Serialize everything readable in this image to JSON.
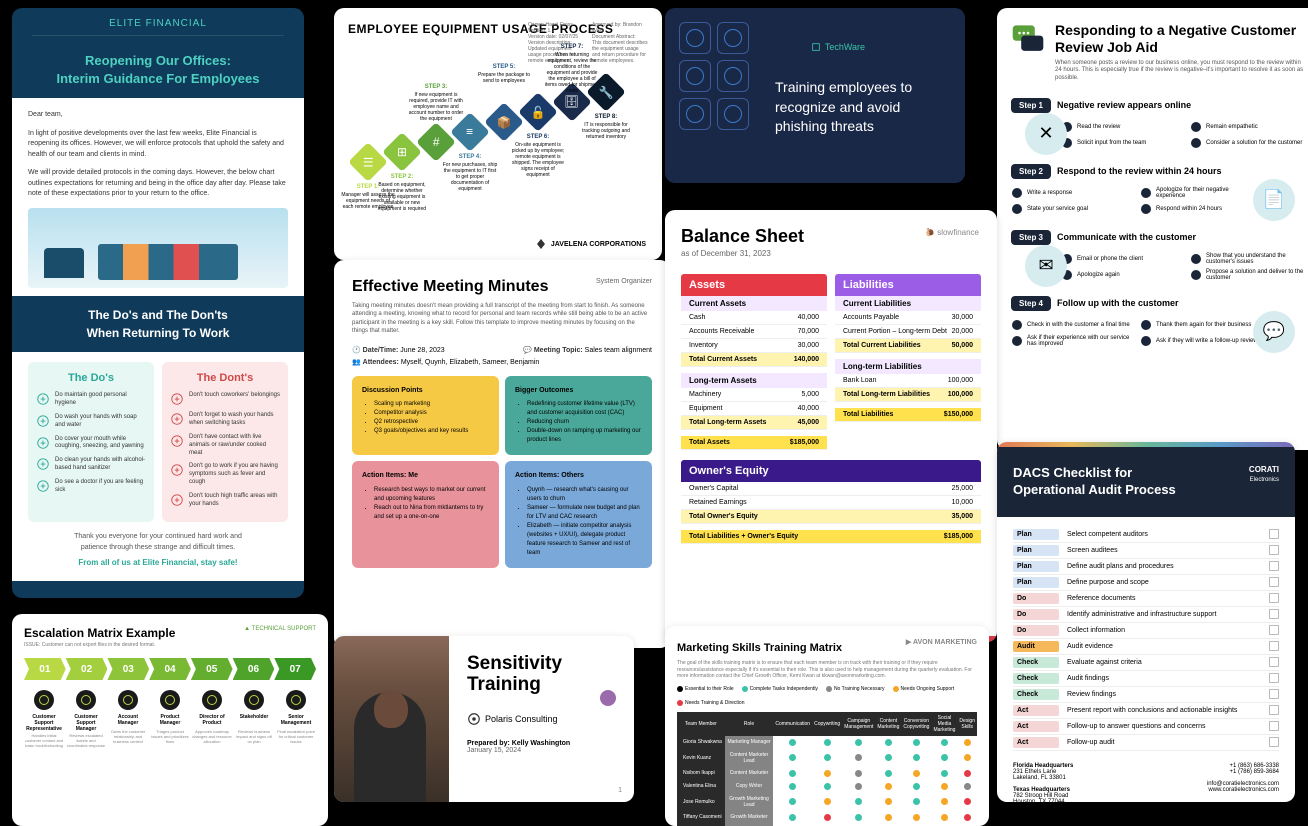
{
  "c1": {
    "brand": "ELITE FINANCIAL",
    "title": "Reopening Our Offices:\nInterim Guidance For Employees",
    "greet": "Dear team,",
    "p1": "In light of positive developments over the last few weeks, Elite Financial is reopening its offices. However, we will enforce protocols that uphold the safety and health of our team and clients in mind.",
    "p2": "We will provide detailed protocols in the coming days. However, the below chart outlines expectations for returning and being in the office day after day. Please take note of these expectations prior to your return to the office.",
    "h2": "The Do's and The Don'ts\nWhen Returning To Work",
    "do_h": "The Do's",
    "dont_h": "The Dont's",
    "dos": [
      "Do maintain good personal hygiene",
      "Do wash your hands with soap and water",
      "Do cover your mouth while coughing, sneezing, and yawning",
      "Do clean your hands with alcohol-based hand sanitizer",
      "Do see a doctor if you are feeling sick"
    ],
    "donts": [
      "Don't touch coworkers' belongings",
      "Don't forget to wash your hands when switching tasks",
      "Don't have contact with live animals or raw/under cooked meat",
      "Don't go to work if you are having symptoms such as fever and cough",
      "Don't touch high traffic areas with your hands"
    ],
    "foot": "Thank you everyone for your continued hard work and\npatience through these strange and difficult times.",
    "sign": "From all of us at Elite Financial, stay safe!",
    "do_color": "#2aa896",
    "dont_color": "#d04848"
  },
  "c2": {
    "title": "EMPLOYEE EQUIPMENT USAGE PROCESS",
    "owner": "Owner: Hazel Cross",
    "ver": "Version: 1.1",
    "vdate": "Version date: 02/07/25",
    "vdesc": "Version description: Updated equipment usage procedures for remote employees",
    "approved": "Approved by: Brandon Walls",
    "scope": "Document Abstract:\nThis document describes the equipment usage and return procedure for remote employees.",
    "steps": [
      {
        "n": "STEP 1:",
        "t": "Manager will assess the equipment needs of each remote employee",
        "c": "#b8d943"
      },
      {
        "n": "STEP 2:",
        "t": "Based on equipment, determine whether existing equipment is available or new equipment is required",
        "c": "#8ac43e"
      },
      {
        "n": "STEP 3:",
        "t": "If new equipment is required, provide IT with employee name and account number to order the equipment",
        "c": "#5aa03a"
      },
      {
        "n": "STEP 4:",
        "t": "For new purchases, ship the equipment to IT first to get proper documentation of equipment",
        "c": "#3a7a9a"
      },
      {
        "n": "STEP 5:",
        "t": "Prepare the package to send to employees",
        "c": "#2a5a8a"
      },
      {
        "n": "STEP 6:",
        "t": "On-site equipment is picked up by employee; remote equipment is shipped. The employee signs receipt of equipment",
        "c": "#1a3a6a"
      },
      {
        "n": "STEP 7:",
        "t": "When returning equipment, review the conditions of the equipment and provide the employee a bill of items owed for shipment costs",
        "c": "#1a2a4a"
      },
      {
        "n": "STEP 8:",
        "t": "IT is responsible for tracking outgoing and returned inventory",
        "c": "#0a1a2a"
      }
    ],
    "foot": "JAVELENA CORPORATIONS"
  },
  "c3": {
    "brand": "TechWare",
    "txt": "Training employees to recognize and avoid phishing threats"
  },
  "c4": {
    "title": "Responding to a Negative Customer Review Job Aid",
    "sub": "When someone posts a review to our business online, you must respond to the review within 24 hours. This is especially true if the review is negative–it's important to resolve it as soon as possible.",
    "steps": [
      {
        "b": "Step 1",
        "h": "Negative review appears online",
        "items": [
          "Read the review",
          "Remain empathetic",
          "Solicit input from the team",
          "Consider a solution for the customer"
        ]
      },
      {
        "b": "Step 2",
        "h": "Respond to the review within 24 hours",
        "items": [
          "Write a response",
          "Apologize for their negative experience",
          "State your service goal",
          "Respond within 24 hours"
        ]
      },
      {
        "b": "Step 3",
        "h": "Communicate with the customer",
        "items": [
          "Email or phone the client",
          "Show that you understand the customer's issues",
          "Apologize again",
          "Propose a solution and deliver to the customer"
        ]
      },
      {
        "b": "Step 4",
        "h": "Follow up with the customer",
        "items": [
          "Check in with the customer a final time",
          "Thank them again for their business",
          "Ask if their experience with our service has improved",
          "Ask if they will write a follow-up review"
        ]
      }
    ]
  },
  "c5": {
    "title": "Effective Meeting Minutes",
    "org": "System Organizer",
    "p": "Taking meeting minutes doesn't mean providing a full transcript of the meeting from start to finish. As someone attending a meeting, knowing what to record for personal and team records while still being able to be an active participant in the meeting is a key skill. Follow this template to improve meeting minutes by focusing on the things that matter.",
    "dt_l": "Date/Time:",
    "dt": "June 28, 2023",
    "topic_l": "Meeting Topic:",
    "topic": "Sales team alignment",
    "att_l": "Attendees:",
    "att": "Myself, Quynh, Elizabeth, Sameer, Benjamin",
    "boxes": [
      {
        "c": "#f6c945",
        "h": "Discussion Points",
        "items": [
          "Scaling up marketing",
          "Competitor analysis",
          "Q2 retrospective",
          "Q3 goals/objectives and key results"
        ]
      },
      {
        "c": "#4aa89a",
        "h": "Bigger Outcomes",
        "items": [
          "Redefining customer lifetime value (LTV) and customer acquisition cost (CAC)",
          "Reducing churn",
          "Double-down on ramping up marketing our product lines"
        ]
      },
      {
        "c": "#e8939b",
        "h": "Action Items: Me",
        "items": [
          "Research best ways to market our current and upcoming features",
          "Reach out to Nina from mktlanterns to try and set up a one-on-one"
        ]
      },
      {
        "c": "#7aa8d8",
        "h": "Action Items: Others",
        "items": [
          "Quynh — research what's causing our users to churn",
          "Sameer — formulate new budget and plan for LTV and CAC research",
          "Elizabeth — initiate competitor analysis (websites + UX/UI), delegate product feature research to Sameer and rest of team"
        ]
      }
    ]
  },
  "c6": {
    "title": "Balance Sheet",
    "date": "as of December 31, 2023",
    "brand": "slowfinance",
    "assets": {
      "h": "Assets",
      "c": "#e63946",
      "s1": "Current Assets",
      "r1": [
        [
          "Cash",
          "40,000"
        ],
        [
          "Accounts Receivable",
          "70,000"
        ],
        [
          "Inventory",
          "30,000"
        ]
      ],
      "t1": [
        "Total Current Assets",
        "140,000"
      ],
      "s2": "Long-term Assets",
      "r2": [
        [
          "Machinery",
          "5,000"
        ],
        [
          "Equipment",
          "40,000"
        ]
      ],
      "t2": [
        "Total Long-term Assets",
        "45,000"
      ],
      "ta": [
        "Total Assets",
        "$185,000"
      ]
    },
    "liab": {
      "h": "Liabilities",
      "c": "#9b5de5",
      "s1": "Current Liabilities",
      "r1": [
        [
          "Accounts Payable",
          "30,000"
        ],
        [
          "Current Portion – Long-term Debt",
          "20,000"
        ]
      ],
      "t1": [
        "Total Current Liabilities",
        "50,000"
      ],
      "s2": "Long-term Liabilities",
      "r2": [
        [
          "Bank Loan",
          "100,000"
        ]
      ],
      "t2": [
        "Total Long-term Liabilities",
        "100,000"
      ],
      "tl": [
        "Total Liabilities",
        "$150,000"
      ]
    },
    "equity": {
      "h": "Owner's Equity",
      "c": "#3a1a8a",
      "r": [
        [
          "Owner's Capital",
          "25,000"
        ],
        [
          "Retained Earnings",
          "10,000"
        ]
      ],
      "t": [
        "Total Owner's Equity",
        "35,000"
      ]
    },
    "final": [
      "Total Liabilities + Owner's Equity",
      "$185,000"
    ]
  },
  "c7": {
    "title": "Escalation Matrix Example",
    "sub": "ISSUE: Customer can not export files in the desired format.",
    "colors": [
      "#b8d943",
      "#a3cf3e",
      "#8ec439",
      "#79b934",
      "#64ae2f",
      "#4fa32a",
      "#3a9825"
    ],
    "nums": [
      "01",
      "02",
      "03",
      "04",
      "05",
      "06",
      "07"
    ],
    "roles": [
      "Customer Support Representative",
      "Customer Support Manager",
      "Account Manager",
      "Product Manager",
      "Director of Product",
      "Stakeholder",
      "Senior Management"
    ],
    "desc": [
      "Handles initial customer contact and basic troubleshooting",
      "Reviews escalated tickets and coordinates response",
      "Owns the customer relationship and business context",
      "Triages product issues and prioritizes fixes",
      "Approves roadmap changes and resource allocation",
      "Reviews business impact and signs off on plan",
      "Final escalation point for critical customer issues"
    ]
  },
  "c8": {
    "title": "Sensitivity Training",
    "org": "Polaris Consulting",
    "prep": "Prepared by: Kelly Washington",
    "date": "January 15, 2024",
    "pn": "1"
  },
  "c9": {
    "title": "Marketing Skills Training Matrix",
    "brand": "AVON MARKETING",
    "p": "The goal of the skills training matrix is to ensure that each team member is on track with their training or if they require resources/assistance especially if it's essential to their role. This is also used to help management during the quarterly evaluation. For more information contact the Chief Growth Officer, Kemi Kwan at kkwan@avonmarketing.com.",
    "legend": [
      {
        "l": "Essential to their Role",
        "c": "#000"
      },
      {
        "l": "Complete Tasks Independently",
        "c": "#3ac3a8"
      },
      {
        "l": "No Training Necessary",
        "c": "#888"
      },
      {
        "l": "Needs Ongoing Support",
        "c": "#f5a623"
      },
      {
        "l": "Needs Training & Direction",
        "c": "#e63946"
      }
    ],
    "cols": [
      "Team Member",
      "Role",
      "Communication",
      "Copywriting",
      "Campaign Management",
      "Content Marketing",
      "Conversion Copywriting",
      "Social Media Marketing",
      "Design Skills"
    ],
    "rows": [
      {
        "n": "Gioria Shwakwna",
        "r": "Marketing Manager",
        "v": [
          "g",
          "g",
          "g",
          "g",
          "g",
          "g",
          "y"
        ]
      },
      {
        "n": "Kevin Kuanz",
        "r": "Content Marketer Lead",
        "v": [
          "g",
          "g",
          "x",
          "g",
          "g",
          "g",
          "y"
        ]
      },
      {
        "n": "Nsibom Ikappi",
        "r": "Content Marketer",
        "v": [
          "g",
          "y",
          "x",
          "g",
          "y",
          "g",
          "r"
        ]
      },
      {
        "n": "Valentina Elina",
        "r": "Copy Writer",
        "v": [
          "g",
          "g",
          "x",
          "y",
          "g",
          "y",
          "x"
        ]
      },
      {
        "n": "Jose Remulko",
        "r": "Growth Marketing Lead",
        "v": [
          "g",
          "y",
          "g",
          "y",
          "g",
          "y",
          "r"
        ]
      },
      {
        "n": "Tiffany Casomeni",
        "r": "Growth Marketer",
        "v": [
          "g",
          "r",
          "g",
          "y",
          "y",
          "y",
          "r"
        ]
      },
      {
        "n": "Genoveva Etomdiani",
        "r": "Email Growth Marketer",
        "v": [
          "g",
          "y",
          "y",
          "r",
          "g",
          "r",
          "x"
        ]
      }
    ],
    "cellColors": {
      "g": "#3ac3a8",
      "y": "#f5a623",
      "r": "#e63946",
      "x": "#888888"
    }
  },
  "c10": {
    "title": "DACS Checklist for\nOperational Audit Process",
    "brand": "CORATI",
    "brand2": "Electronics",
    "tags": {
      "Plan": "#d6e4f5",
      "Do": "#f5d6d6",
      "Audit": "#f5b85a",
      "Check": "#c8e8d8",
      "Act": "#f5d6d6"
    },
    "rows": [
      [
        "Plan",
        "Select competent auditors"
      ],
      [
        "Plan",
        "Screen auditees"
      ],
      [
        "Plan",
        "Define audit plans and procedures"
      ],
      [
        "Plan",
        "Define purpose and scope"
      ],
      [
        "Do",
        "Reference documents"
      ],
      [
        "Do",
        "Identify administrative and infrastructure support"
      ],
      [
        "Do",
        "Collect information"
      ],
      [
        "Audit",
        "Audit evidence"
      ],
      [
        "Check",
        "Evaluate against criteria"
      ],
      [
        "Check",
        "Audit findings"
      ],
      [
        "Check",
        "Review findings"
      ],
      [
        "Act",
        "Present report with conclusions and actionable insights"
      ],
      [
        "Act",
        "Follow-up to answer questions and concerns"
      ],
      [
        "Act",
        "Follow-up audit"
      ]
    ],
    "addr1": {
      "h": "Florida Headquarters",
      "l1": "231 Ethels Lane",
      "l2": "Lakeland, FL 33801"
    },
    "addr2": {
      "h": "Texas Headquarters",
      "l1": "782 Stroop Hill Road",
      "l2": "Houston, TX 77044"
    },
    "ph1": "+1 (863) 686-3338",
    "ph2": "+1 (786) 859-3684",
    "em": "info@coratielectronics.com",
    "web": "www.coratielectronics.com"
  }
}
